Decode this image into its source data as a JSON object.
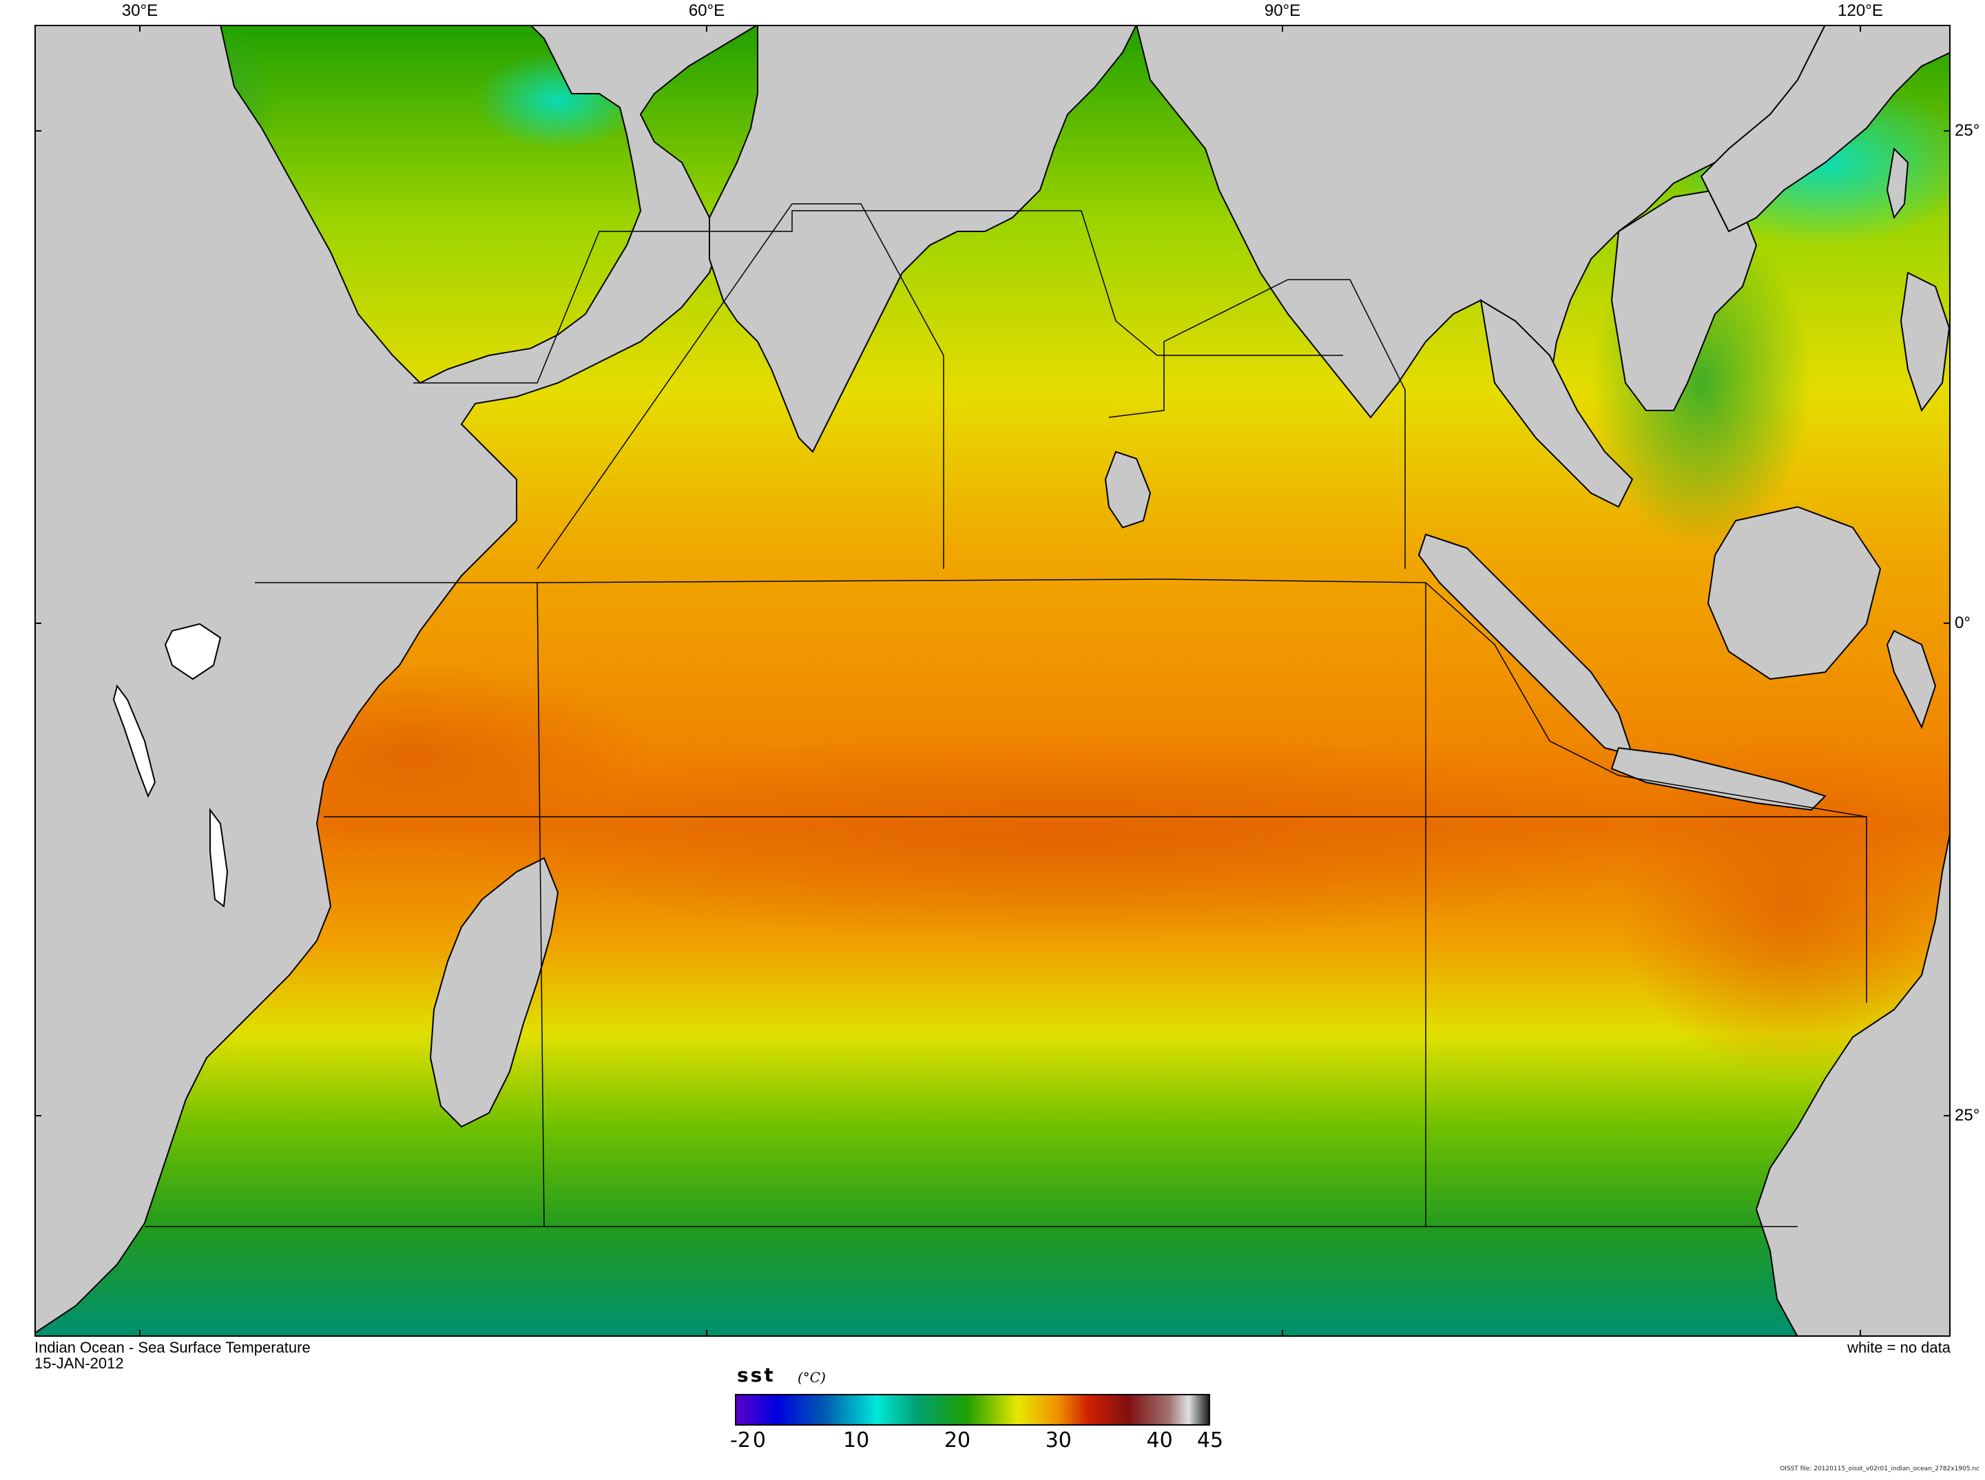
{
  "map": {
    "title": "Indian Ocean - Sea Surface Temperature",
    "date": "15-JAN-2012",
    "no_data_note": "white = no data",
    "file_note": "OISST file: 20120115_oisst_v02r01_indian_ocean_2782x1905.nc",
    "longitude_labels": [
      "30°E",
      "60°E",
      "90°E",
      "120°E"
    ],
    "latitude_labels": [
      "25°",
      "0°",
      "25°"
    ],
    "colors": {
      "land": "#c8c8c8",
      "no_data": "#ffffff",
      "coast": "#000000"
    }
  },
  "legend": {
    "variable": "sst",
    "unit": "(°C)",
    "tick_labels": [
      "-2",
      "0",
      "10",
      "20",
      "30",
      "40",
      "45"
    ],
    "range": [
      -2,
      45
    ],
    "color_stops": [
      {
        "value": -2,
        "color": "#5a00c8"
      },
      {
        "value": 2,
        "color": "#0000e0"
      },
      {
        "value": 7,
        "color": "#0060b0"
      },
      {
        "value": 12,
        "color": "#00e8d8"
      },
      {
        "value": 16,
        "color": "#00a070"
      },
      {
        "value": 21,
        "color": "#20a000"
      },
      {
        "value": 26,
        "color": "#e8e800"
      },
      {
        "value": 30,
        "color": "#f09000"
      },
      {
        "value": 33,
        "color": "#d02000"
      },
      {
        "value": 37,
        "color": "#801010"
      },
      {
        "value": 41,
        "color": "#a07070"
      },
      {
        "value": 43,
        "color": "#e0e0e0"
      },
      {
        "value": 45,
        "color": "#202020"
      }
    ]
  }
}
